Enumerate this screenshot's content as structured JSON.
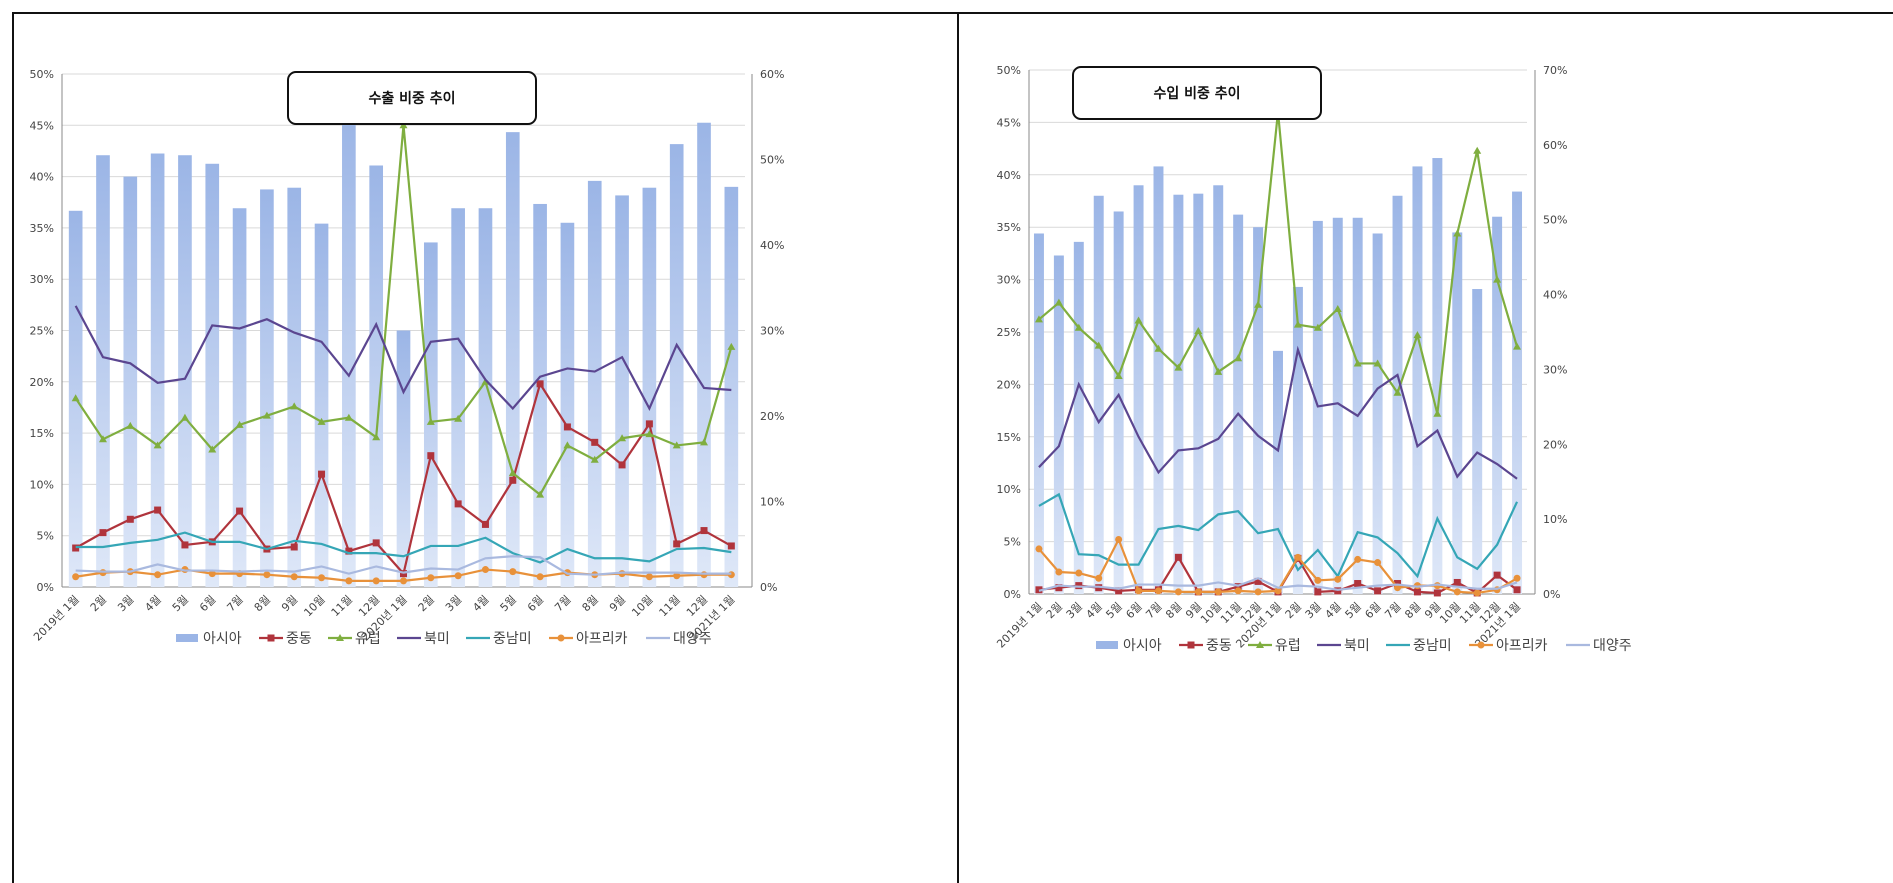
{
  "colors": {
    "asia": "#9bb5e6",
    "middle_east": "#b0343c",
    "europe": "#7fae3f",
    "north_america": "#5b4690",
    "latin_america": "#35a6b6",
    "africa": "#e8913a",
    "oceania": "#a9b9df",
    "grid": "#d9d9d9"
  },
  "legend_labels": [
    "아시아",
    "중동",
    "유럽",
    "북미",
    "중남미",
    "아프리카",
    "대양주"
  ],
  "chart_data": [
    {
      "type": "bar",
      "title": "수출 비중 추이",
      "categories": [
        "2019년 1월",
        "2월",
        "3월",
        "4월",
        "5월",
        "6월",
        "7월",
        "8월",
        "9월",
        "10월",
        "11월",
        "12월",
        "2020년 1월",
        "2월",
        "3월",
        "4월",
        "5월",
        "6월",
        "7월",
        "8월",
        "9월",
        "10월",
        "11월",
        "12월",
        "2021년 1월"
      ],
      "left_axis": {
        "ylim": [
          0,
          50
        ],
        "ticks": [
          "0%",
          "5%",
          "10%",
          "15%",
          "20%",
          "25%",
          "30%",
          "35%",
          "40%",
          "45%",
          "50%"
        ]
      },
      "right_axis": {
        "ylim": [
          0,
          60
        ],
        "ticks": [
          "0%",
          "10%",
          "20%",
          "30%",
          "40%",
          "50%",
          "60%"
        ]
      },
      "bar_series": {
        "name": "아시아",
        "axis": "right",
        "values": [
          44,
          50.5,
          48,
          50.7,
          50.5,
          49.5,
          44.3,
          46.5,
          46.7,
          42.5,
          55,
          49.3,
          30,
          40.3,
          44.3,
          44.3,
          53.2,
          44.8,
          42.6,
          47.5,
          45.8,
          46.7,
          51.8,
          54.3,
          46.8
        ]
      },
      "series": [
        {
          "name": "중동",
          "values": [
            3.8,
            5.3,
            6.6,
            7.5,
            4.1,
            4.4,
            7.4,
            3.7,
            3.9,
            11,
            3.5,
            4.3,
            1.3,
            12.8,
            8.1,
            6.1,
            10.4,
            19.8,
            15.6,
            14.1,
            11.9,
            15.9,
            4.2,
            5.5,
            4
          ]
        },
        {
          "name": "유럽",
          "values": [
            18.4,
            14.4,
            15.7,
            13.8,
            16.5,
            13.4,
            15.8,
            16.7,
            17.6,
            16.1,
            16.5,
            14.6,
            45,
            16.1,
            16.4,
            20,
            11.1,
            9,
            13.8,
            12.4,
            14.5,
            14.9,
            13.8,
            14.1,
            23.4
          ]
        },
        {
          "name": "북미",
          "values": [
            27.4,
            22.4,
            21.8,
            19.9,
            20.3,
            25.5,
            25.2,
            26.1,
            24.8,
            23.9,
            20.6,
            25.6,
            19,
            23.9,
            24.2,
            20.2,
            17.4,
            20.5,
            21.3,
            21,
            22.4,
            17.4,
            23.6,
            19.4,
            19.2
          ]
        },
        {
          "name": "중남미",
          "values": [
            3.9,
            3.9,
            4.3,
            4.6,
            5.3,
            4.4,
            4.4,
            3.7,
            4.5,
            4.2,
            3.3,
            3.3,
            3,
            4,
            4,
            4.8,
            3.3,
            2.4,
            3.7,
            2.8,
            2.8,
            2.5,
            3.7,
            3.8,
            3.4
          ]
        },
        {
          "name": "아프리카",
          "values": [
            1,
            1.4,
            1.5,
            1.2,
            1.7,
            1.3,
            1.3,
            1.2,
            1,
            0.9,
            0.6,
            0.6,
            0.6,
            0.9,
            1.1,
            1.7,
            1.5,
            1,
            1.4,
            1.2,
            1.3,
            1,
            1.1,
            1.2,
            1.2
          ]
        },
        {
          "name": "대양주",
          "values": [
            1.6,
            1.5,
            1.5,
            2.2,
            1.6,
            1.6,
            1.5,
            1.6,
            1.5,
            2,
            1.3,
            2,
            1.4,
            1.8,
            1.7,
            2.8,
            3,
            2.9,
            1.3,
            1.2,
            1.4,
            1.4,
            1.4,
            1.3,
            1.3
          ]
        }
      ]
    },
    {
      "type": "bar",
      "title": "수입 비중 추이",
      "categories": [
        "2019년 1월",
        "2월",
        "3월",
        "4월",
        "5월",
        "6월",
        "7월",
        "8월",
        "9월",
        "10월",
        "11월",
        "12월",
        "2020년 1월",
        "2월",
        "3월",
        "4월",
        "5월",
        "6월",
        "7월",
        "8월",
        "9월",
        "10월",
        "11월",
        "12월",
        "2021년 1월"
      ],
      "left_axis": {
        "ylim": [
          0,
          50
        ],
        "ticks": [
          "0%",
          "5%",
          "10%",
          "15%",
          "20%",
          "25%",
          "30%",
          "35%",
          "40%",
          "45%",
          "50%"
        ]
      },
      "right_axis": {
        "ylim": [
          0,
          70
        ],
        "ticks": [
          "0%",
          "10%",
          "20%",
          "30%",
          "40%",
          "50%",
          "60%",
          "70%"
        ]
      },
      "bar_series": {
        "name": "아시아",
        "axis": "left",
        "values": [
          34.4,
          32.3,
          33.6,
          38,
          36.5,
          39,
          40.8,
          38.1,
          38.2,
          39,
          36.2,
          35,
          23.2,
          29.3,
          35.6,
          35.9,
          35.9,
          34.4,
          38,
          40.8,
          41.6,
          34.5,
          29.1,
          36,
          38.4
        ]
      },
      "series": [
        {
          "name": "중동",
          "values": [
            0.4,
            0.6,
            0.8,
            0.6,
            0.3,
            0.4,
            0.4,
            3.5,
            0.2,
            0.2,
            0.7,
            1.2,
            0.2,
            3.4,
            0.2,
            0.3,
            1,
            0.3,
            1,
            0.2,
            0.1,
            1.1,
            0.1,
            1.8,
            0.4
          ]
        },
        {
          "name": "유럽",
          "values": [
            26.2,
            27.8,
            25.4,
            23.7,
            20.8,
            26.1,
            23.4,
            21.6,
            25.1,
            21.2,
            22.5,
            27.6,
            46,
            25.7,
            25.4,
            27.2,
            22,
            22,
            19.2,
            24.7,
            17.2,
            34.4,
            42.3,
            30,
            23.6
          ]
        },
        {
          "name": "북미",
          "values": [
            12.1,
            14.1,
            20,
            16.4,
            19,
            15,
            11.6,
            13.7,
            13.9,
            14.8,
            17.2,
            15.1,
            13.7,
            23.3,
            17.9,
            18.2,
            17,
            19.6,
            20.9,
            14.1,
            15.6,
            11.2,
            13.5,
            12.4,
            11
          ]
        },
        {
          "name": "중남미",
          "values": [
            8.4,
            9.5,
            3.8,
            3.7,
            2.8,
            2.8,
            6.2,
            6.5,
            6.1,
            7.6,
            7.9,
            5.8,
            6.2,
            2.3,
            4.2,
            1.7,
            5.9,
            5.4,
            3.9,
            1.7,
            7.2,
            3.5,
            2.4,
            4.7,
            8.8
          ]
        },
        {
          "name": "아프리카",
          "values": [
            4.3,
            2.1,
            2,
            1.5,
            5.2,
            0.3,
            0.3,
            0.2,
            0.2,
            0.2,
            0.3,
            0.2,
            0.3,
            3.5,
            1.3,
            1.4,
            3.3,
            3,
            0.6,
            0.8,
            0.8,
            0.2,
            0.1,
            0.4,
            1.5
          ]
        },
        {
          "name": "대양주",
          "values": [
            0.3,
            0.8,
            0.7,
            0.7,
            0.5,
            0.9,
            0.9,
            0.8,
            0.8,
            1.1,
            0.8,
            1.5,
            0.6,
            0.8,
            0.7,
            0.4,
            0.6,
            0.8,
            0.9,
            0.7,
            0.9,
            0.7,
            0.5,
            0.5,
            1.1
          ]
        }
      ]
    }
  ]
}
